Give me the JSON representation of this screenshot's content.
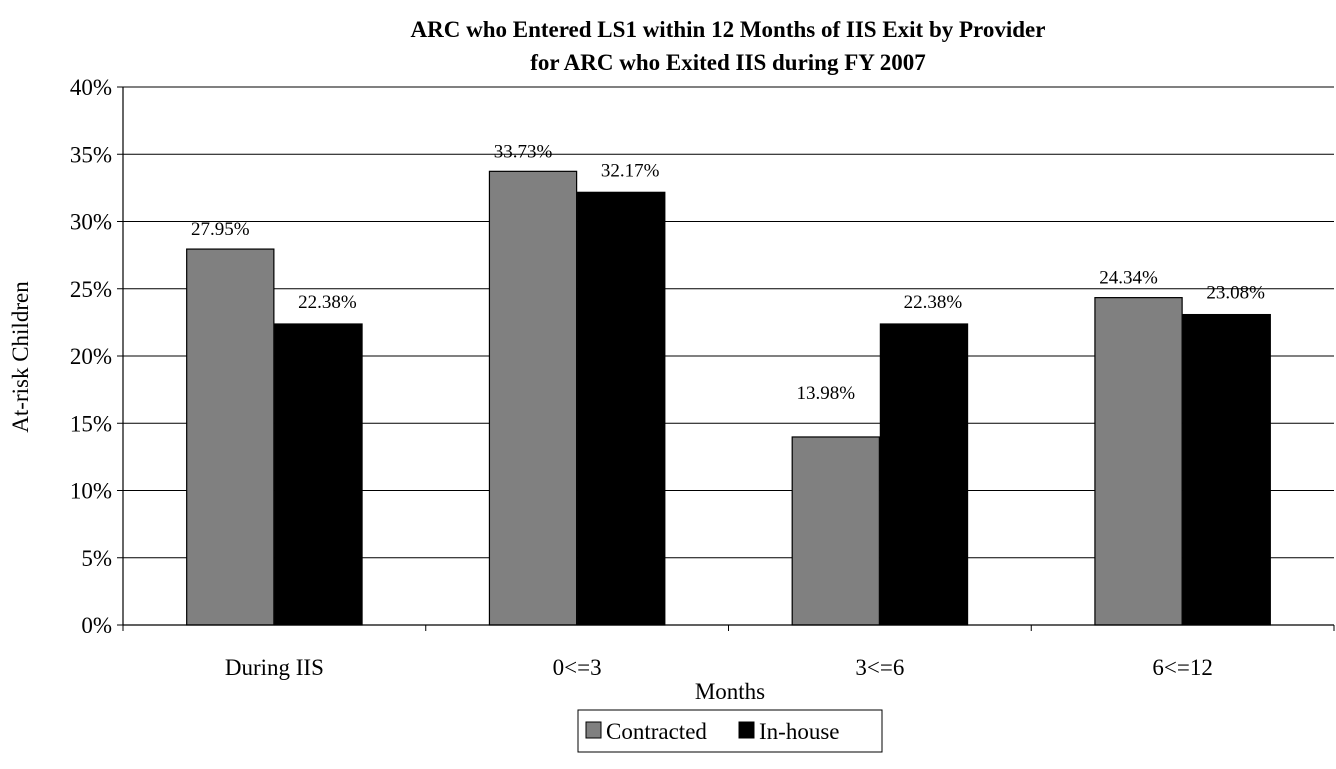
{
  "chart_data": {
    "type": "bar",
    "title": "ARC who Entered LS1 within 12 Months of IIS Exit by Provider",
    "subtitle": "for ARC who Exited IIS during FY 2007",
    "xlabel": "Months",
    "ylabel": "At-risk Children",
    "categories": [
      "During IIS",
      "0<=3",
      "3<=6",
      "6<=12"
    ],
    "series": [
      {
        "name": "Contracted",
        "values": [
          27.95,
          33.73,
          13.98,
          24.34
        ],
        "labels": [
          "27.95%",
          "33.73%",
          "13.98%",
          "24.34%"
        ],
        "color": "#808080"
      },
      {
        "name": "In-house",
        "values": [
          22.38,
          32.17,
          22.38,
          23.08
        ],
        "labels": [
          "22.38%",
          "32.17%",
          "22.38%",
          "23.08%"
        ],
        "color": "#000000"
      }
    ],
    "ylim": [
      0,
      40
    ],
    "yticks": [
      0,
      5,
      10,
      15,
      20,
      25,
      30,
      35,
      40
    ],
    "ytick_labels": [
      "0%",
      "5%",
      "10%",
      "15%",
      "20%",
      "25%",
      "30%",
      "35%",
      "40%"
    ],
    "grid": true,
    "legend_position": "bottom-center"
  }
}
